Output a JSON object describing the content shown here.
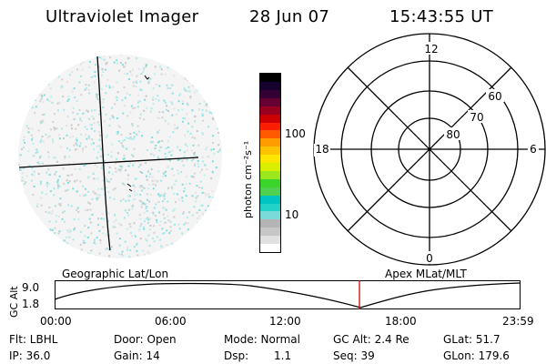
{
  "header": {
    "title": "Ultraviolet Imager",
    "date": "28 Jun 07",
    "time": "15:43:55 UT"
  },
  "colorbar": {
    "unit_label": "photon cm⁻²s⁻¹",
    "ticks": [
      "100",
      "10"
    ],
    "colors": [
      "#ffffff",
      "#e0e0e0",
      "#c6c6c6",
      "#b4b4b4",
      "#7ad9d9",
      "#22d2c8",
      "#00c4bf",
      "#4fd14f",
      "#3bd42b",
      "#9be61c",
      "#d8f000",
      "#ffe600",
      "#ffc300",
      "#ff9c00",
      "#ff5a00",
      "#ff1e00",
      "#cc0000",
      "#99001f",
      "#660033",
      "#330033",
      "#16002e",
      "#000000"
    ]
  },
  "polar": {
    "mlt_labels": [
      "12",
      "18",
      "6",
      "0"
    ],
    "lat_labels": [
      "60",
      "70",
      "80"
    ]
  },
  "timeline": {
    "left_label": "Geographic Lat/Lon",
    "right_label": "Apex MLat/MLT",
    "y_axis_label": "GC Alt",
    "y_ticks": [
      "9.0",
      "1.8"
    ],
    "x_ticks": [
      "00:00",
      "06:00",
      "12:00",
      "18:00",
      "23:59"
    ],
    "marker_time": "15:43"
  },
  "info": {
    "filter": "Flt: LBHL",
    "door": "Door: Open",
    "mode": "Mode: Normal",
    "gc_alt": "GC Alt: 2.4 Re",
    "glat": "GLat: 51.7",
    "ip": "IP: 36.0",
    "gain": "Gain: 14",
    "dsp_label": "Dsp:",
    "dsp_value": "1.1",
    "seq": "Seq: 39",
    "glon": "GLon: 179.6"
  }
}
